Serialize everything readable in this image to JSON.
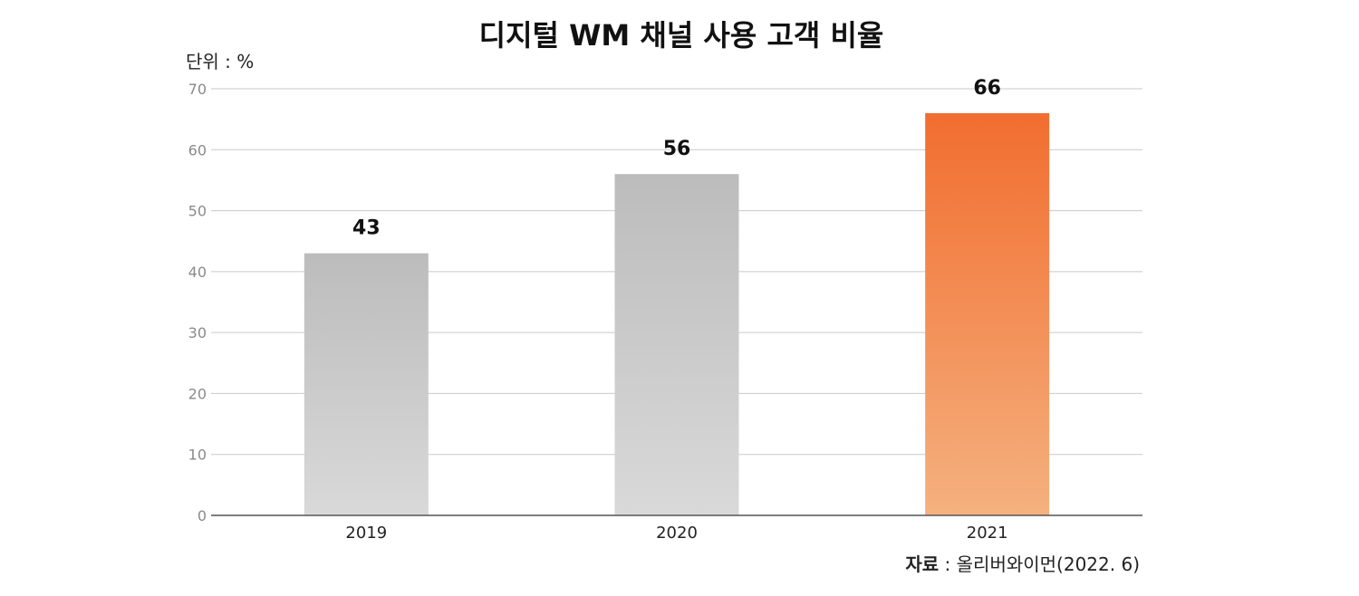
{
  "chart_data": {
    "type": "bar",
    "title": "디지털 WM 채널 사용 고객 비율",
    "unit_label": "단위 : %",
    "categories": [
      "2019",
      "2020",
      "2021"
    ],
    "values": [
      43,
      56,
      66
    ],
    "data_labels": [
      "43",
      "56",
      "66"
    ],
    "ylim": [
      0,
      70
    ],
    "y_ticks": [
      "0",
      "10",
      "20",
      "30",
      "40",
      "50",
      "60",
      "70"
    ],
    "grid": true,
    "bar_colors": {
      "gray_top": "#bcbcbc",
      "gray_bottom": "#d9d9d9",
      "highlight_top": "#f26d2f",
      "highlight_bottom": "#f4b17f"
    },
    "highlight_category": "2021",
    "source": {
      "label": "자료",
      "text": " : 올리버와이먼(2022. 6)"
    }
  }
}
